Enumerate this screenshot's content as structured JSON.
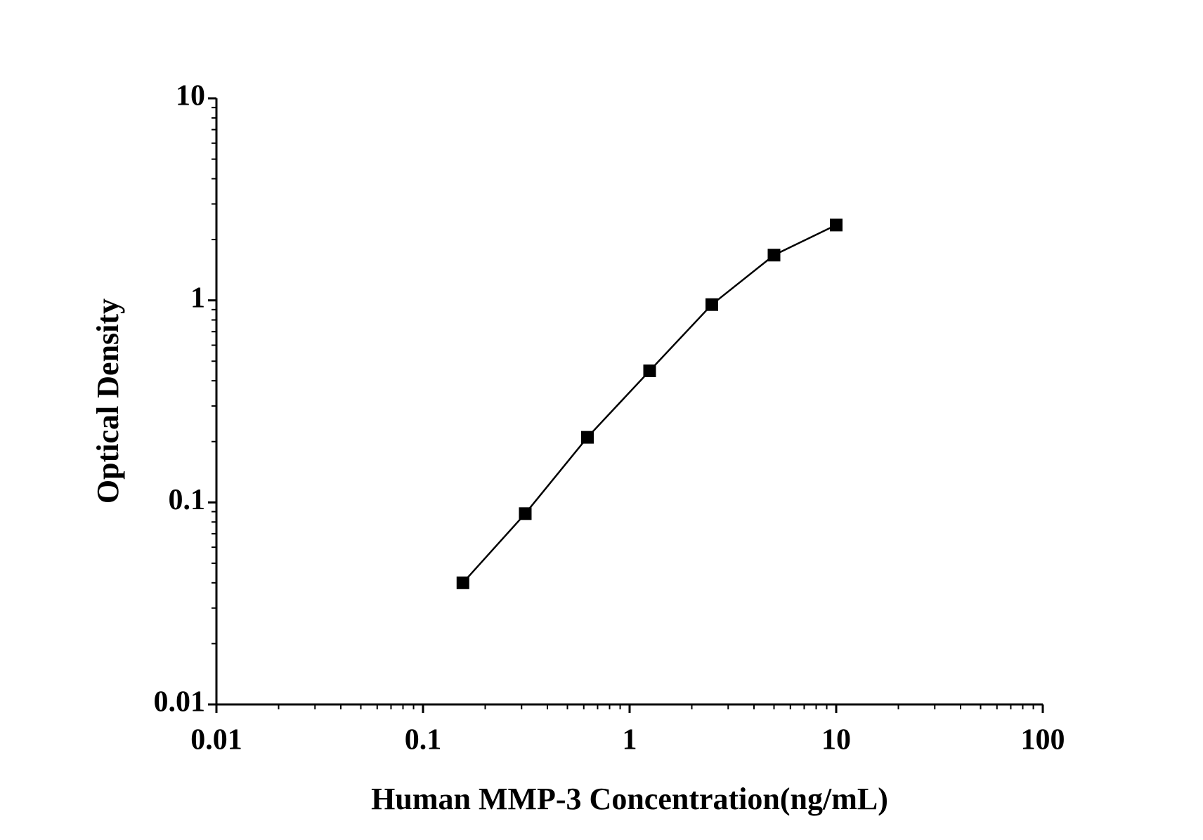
{
  "chart_data": {
    "type": "line",
    "xlabel": "Human MMP-3 Concentration(ng/mL)",
    "ylabel": "Optical Density",
    "x": [
      0.156,
      0.3125,
      0.625,
      1.25,
      2.5,
      5,
      10
    ],
    "series": [
      {
        "color": "#000000",
        "marker": "square",
        "values": [
          0.04,
          0.088,
          0.21,
          0.448,
          0.953,
          1.675,
          2.36
        ]
      }
    ],
    "xlim": [
      0.01,
      100
    ],
    "ylim": [
      0.01,
      10
    ],
    "xticks": [
      0.01,
      0.1,
      1,
      10,
      100
    ],
    "yticks": [
      0.01,
      0.1,
      1,
      10
    ],
    "xscale": "log",
    "yscale": "log",
    "grid": false
  }
}
